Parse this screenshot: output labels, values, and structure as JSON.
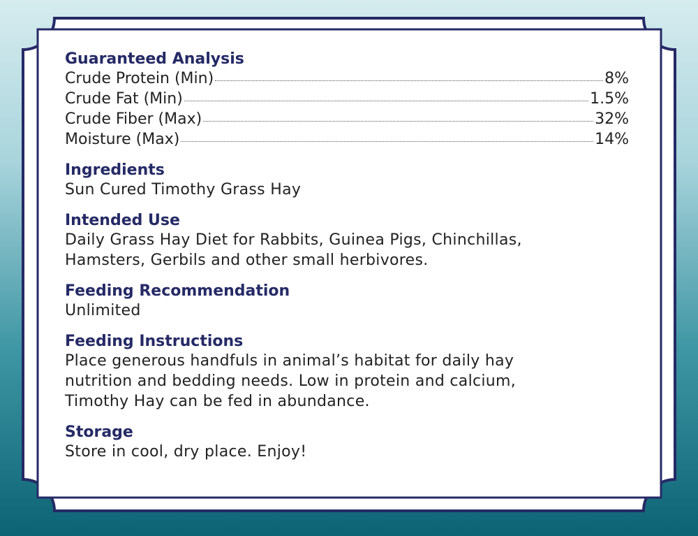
{
  "guaranteed_analysis": {
    "heading": "Guaranteed Analysis",
    "rows": [
      {
        "label": "Crude Protein (Min)",
        "value": "8%"
      },
      {
        "label": "Crude Fat (Min)",
        "value": "1.5%"
      },
      {
        "label": "Crude Fiber (Max)",
        "value": "32%"
      },
      {
        "label": "Moisture (Max)",
        "value": "14%"
      }
    ]
  },
  "ingredients": {
    "heading": "Ingredients",
    "text": "Sun Cured Timothy Grass Hay"
  },
  "intended_use": {
    "heading": "Intended Use",
    "lines": [
      "Daily Grass Hay Diet for Rabbits, Guinea Pigs, Chinchillas,",
      "Hamsters, Gerbils and other small herbivores."
    ]
  },
  "feeding_recommendation": {
    "heading": "Feeding Recommendation",
    "text": "Unlimited"
  },
  "feeding_instructions": {
    "heading": "Feeding Instructions",
    "lines": [
      "Place generous handfuls in animal’s habitat for daily hay",
      "nutrition and bedding needs. Low in protein and calcium,",
      "Timothy Hay can be fed in abundance."
    ]
  },
  "storage": {
    "heading": "Storage",
    "text": "Store in cool, dry place. Enjoy!"
  },
  "colors": {
    "heading": "#252a66",
    "frame": "#252a66",
    "background_top": "#d6ecef",
    "background_bottom": "#0c6374"
  }
}
